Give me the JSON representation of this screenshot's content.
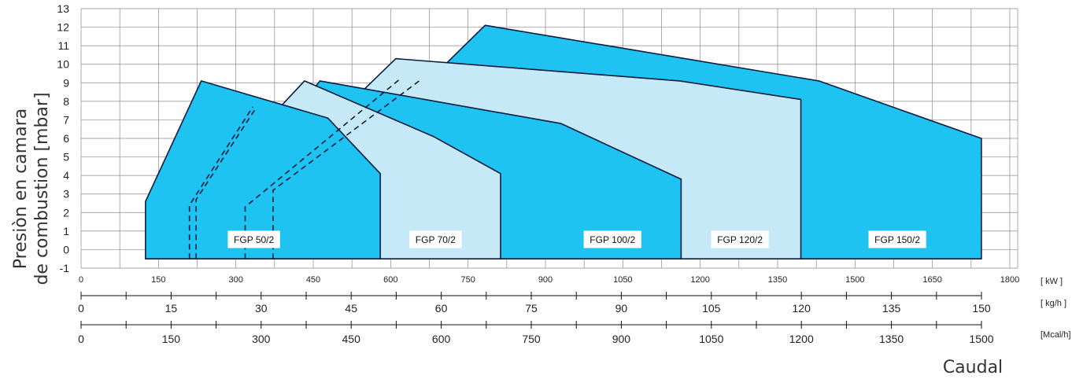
{
  "chart_data": {
    "type": "area",
    "ylabel_line1": "Presiòn en camara",
    "ylabel_line2": "de combustion [mbar]",
    "xlabel": "Caudal",
    "y_ticks": [
      "13",
      "12",
      "11",
      "10",
      "9",
      "8",
      "7",
      "6",
      "5",
      "4",
      "3",
      "2",
      "1",
      "0",
      "-1"
    ],
    "ylim": [
      -1,
      13
    ],
    "kw_axis": {
      "unit": "[ kW ]",
      "range": [
        0,
        1800
      ],
      "tick_labels": [
        "0",
        "150",
        "300",
        "450",
        "600",
        "750",
        "900",
        "1050",
        "1200",
        "1350",
        "1500",
        "1650",
        "1800"
      ]
    },
    "kgh_axis": {
      "unit": "[ kg/h ]",
      "tick_labels": [
        "0",
        "15",
        "30",
        "45",
        "60",
        "75",
        "90",
        "105",
        "120",
        "135",
        "150"
      ]
    },
    "mcal_axis": {
      "unit": "[Mcal/h]",
      "tick_labels": [
        "0",
        "150",
        "300",
        "450",
        "600",
        "750",
        "900",
        "1050",
        "1200",
        "1350",
        "1500"
      ]
    },
    "fill_colors": {
      "dark": "#1ec3f1",
      "light": "#c6e9f8",
      "stroke": "#0d1b3e"
    },
    "series": [
      {
        "name": "FGP 150/2",
        "fill": "dark",
        "points": [
          [
            465,
            -0.5
          ],
          [
            465,
            3.4
          ],
          [
            783,
            12.1
          ],
          [
            1430,
            9.1
          ],
          [
            1745,
            6.0
          ],
          [
            1745,
            -0.5
          ]
        ]
      },
      {
        "name": "FGP 120/2",
        "fill": "light",
        "points": [
          [
            354,
            -0.5
          ],
          [
            354,
            3.4
          ],
          [
            610,
            10.3
          ],
          [
            1160,
            9.1
          ],
          [
            1395,
            8.1
          ],
          [
            1395,
            -0.5
          ]
        ]
      },
      {
        "name": "FGP 100/2",
        "fill": "dark",
        "points": [
          [
            280,
            -0.5
          ],
          [
            280,
            2.6
          ],
          [
            463,
            9.1
          ],
          [
            930,
            6.8
          ],
          [
            1163,
            3.8
          ],
          [
            1163,
            -0.5
          ]
        ]
      },
      {
        "name": "FGP 70/2",
        "fill": "light",
        "points": [
          [
            228,
            -0.5
          ],
          [
            228,
            3.0
          ],
          [
            433,
            9.1
          ],
          [
            683,
            6.1
          ],
          [
            813,
            4.1
          ],
          [
            813,
            -0.5
          ]
        ]
      },
      {
        "name": "FGP 50/2",
        "fill": "dark",
        "points": [
          [
            125,
            -0.5
          ],
          [
            125,
            2.6
          ],
          [
            233,
            9.1
          ],
          [
            478,
            7.1
          ],
          [
            580,
            4.1
          ],
          [
            580,
            -0.5
          ]
        ]
      }
    ],
    "dashed_edges": [
      [
        [
          210,
          -0.5
        ],
        [
          210,
          2.4
        ],
        [
          333,
          7.7
        ]
      ],
      [
        [
          223,
          -0.5
        ],
        [
          223,
          2.7
        ],
        [
          338,
          7.6
        ]
      ],
      [
        [
          318,
          -0.5
        ],
        [
          318,
          2.3
        ],
        [
          618,
          9.2
        ]
      ],
      [
        [
          372,
          -0.5
        ],
        [
          372,
          3.2
        ],
        [
          660,
          9.2
        ]
      ]
    ],
    "series_labels": [
      {
        "text": "FGP 50/2",
        "x": 335
      },
      {
        "text": "FGP 70/2",
        "x": 687
      },
      {
        "text": "FGP 100/2",
        "x": 1030
      },
      {
        "text": "FGP 120/2",
        "x": 1277
      },
      {
        "text": "FGP 150/2",
        "x": 1582
      }
    ],
    "series_label_y": 0.55,
    "grid": true
  }
}
